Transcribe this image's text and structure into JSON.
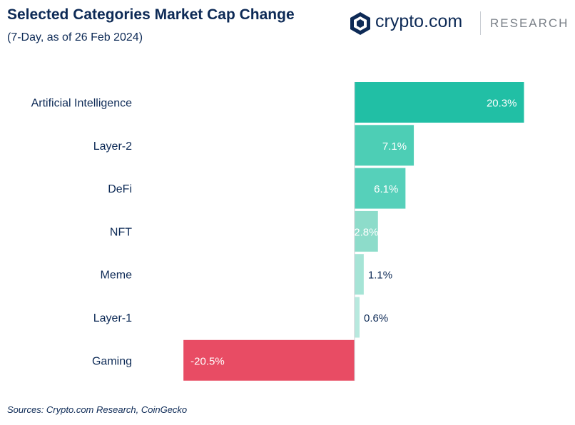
{
  "header": {
    "title": "Selected Categories Market Cap Change",
    "subtitle": "(7-Day, as of 26 Feb 2024)"
  },
  "logo": {
    "brand": "crypto.com",
    "section": "RESEARCH"
  },
  "footer": {
    "source": "Sources: Crypto.com Research, CoinGecko"
  },
  "colors": {
    "text_dark": "#0d2a56",
    "bar_ai": "#21bfa5",
    "bar_layer2": "#4dceb5",
    "bar_defi": "#56d0ba",
    "bar_nft": "#8ddcca",
    "bar_meme": "#a6e4d6",
    "bar_layer1": "#b7e9de",
    "bar_negative": "#e84c64",
    "axis_line": "#c8ccd2"
  },
  "chart_data": {
    "type": "bar",
    "orientation": "horizontal",
    "categories": [
      "Artificial Intelligence",
      "Layer-2",
      "DeFi",
      "NFT",
      "Meme",
      "Layer-1",
      "Gaming"
    ],
    "values": [
      20.3,
      7.1,
      6.1,
      2.8,
      1.1,
      0.6,
      -20.5
    ],
    "data_labels": [
      "20.3%",
      "7.1%",
      "6.1%",
      "2.8%",
      "1.1%",
      "0.6%",
      "-20.5%"
    ],
    "bar_colors": [
      "#21bfa5",
      "#4dceb5",
      "#56d0ba",
      "#8ddcca",
      "#a6e4d6",
      "#b7e9de",
      "#e84c64"
    ],
    "xlim": [
      -20.5,
      20.3
    ],
    "grid": false,
    "legend": "none"
  }
}
